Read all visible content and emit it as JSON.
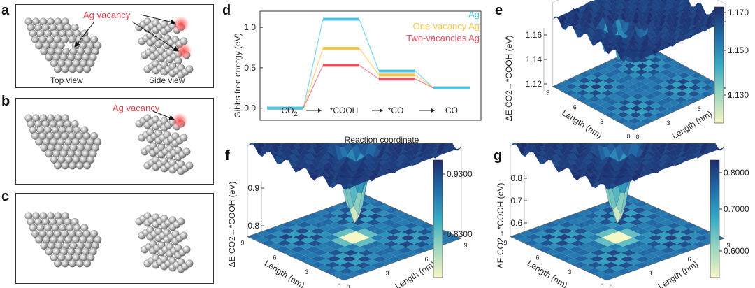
{
  "panels": {
    "a": "a",
    "b": "b",
    "c": "c",
    "d": "d",
    "e": "e",
    "f": "f",
    "g": "g"
  },
  "panel_a": {
    "annotation": "Ag vacancy",
    "caption_left": "Top view",
    "caption_right": "Side view"
  },
  "panel_b": {
    "annotation": "Ag vacancy"
  },
  "colors": {
    "ag": "#48c4e6",
    "one_vacancy": "#f6c543",
    "two_vacancies": "#e9515f",
    "vacancy_glow": "#ff3b3b",
    "surface_dark": "#1d2c6b",
    "surface_light": "#f5f7c4"
  },
  "chart_data": [
    {
      "type": "line",
      "panel": "d",
      "xlabel": "Reaction coordinate",
      "ylabel": "Gibbs free energy (eV)",
      "yticks": [
        "0.0",
        "0.5",
        "1.0"
      ],
      "ylim": [
        -0.15,
        1.2
      ],
      "steps": [
        "CO2",
        "*COOH",
        "*CO",
        "CO"
      ],
      "series": [
        {
          "name": "Ag",
          "color": "#48c4e6",
          "values": [
            0.0,
            1.1,
            0.46,
            0.25
          ]
        },
        {
          "name": "One-vacancy Ag",
          "color": "#f6c543",
          "values": [
            0.0,
            0.74,
            0.41,
            0.25
          ]
        },
        {
          "name": "Two-vacancies Ag",
          "color": "#e9515f",
          "values": [
            0.0,
            0.53,
            0.36,
            0.25
          ]
        }
      ]
    },
    {
      "type": "heatmap",
      "panel": "e",
      "zlabel": "ΔE CO2→*COOH (eV)",
      "zticks": [
        "1.12",
        "1.14",
        "1.16"
      ],
      "colorbar_ticks": [
        "1.170",
        "1.150",
        "1.130"
      ],
      "axis_labels": [
        "Length (nm)",
        "Length (nm)"
      ],
      "axis_ticks": [
        "0",
        "3",
        "6",
        "9"
      ]
    },
    {
      "type": "heatmap",
      "panel": "f",
      "zlabel": "ΔE CO2→*COOH (eV)",
      "zticks": [
        "0.8",
        "0.9"
      ],
      "colorbar_ticks": [
        "0.9300",
        "0.8300"
      ],
      "axis_labels": [
        "Length (nm)",
        "Length (nm)"
      ],
      "axis_ticks": [
        "0",
        "3",
        "6",
        "9"
      ]
    },
    {
      "type": "heatmap",
      "panel": "g",
      "zlabel": "ΔE CO2→*COOH (eV)",
      "zticks": [
        "0.6",
        "0.7",
        "0.8"
      ],
      "colorbar_ticks": [
        "0.8000",
        "0.7000",
        "0.6000"
      ],
      "axis_labels": [
        "Length (nm)",
        "Length (nm)"
      ],
      "axis_ticks": [
        "0",
        "3",
        "6",
        "9"
      ]
    }
  ]
}
